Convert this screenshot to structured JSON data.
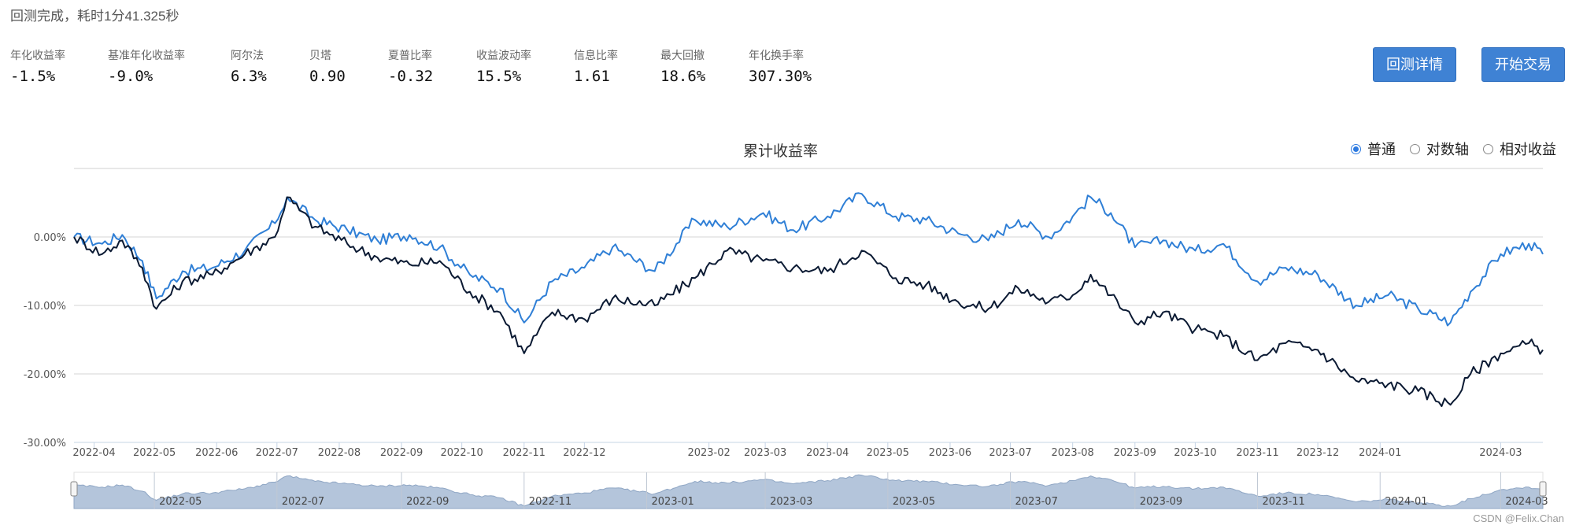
{
  "status_text": "回测完成，耗时1分41.325秒",
  "metrics": [
    {
      "label": "年化收益率",
      "value": "-1.5%"
    },
    {
      "label": "基准年化收益率",
      "value": "-9.0%"
    },
    {
      "label": "阿尔法",
      "value": "6.3%"
    },
    {
      "label": "贝塔",
      "value": "0.90"
    },
    {
      "label": "夏普比率",
      "value": "-0.32"
    },
    {
      "label": "收益波动率",
      "value": "15.5%"
    },
    {
      "label": "信息比率",
      "value": "1.61"
    },
    {
      "label": "最大回撤",
      "value": "18.6%"
    },
    {
      "label": "年化换手率",
      "value": "307.30%"
    }
  ],
  "buttons": {
    "details": "回测详情",
    "start": "开始交易"
  },
  "chart_options": {
    "selected": "普通",
    "options": [
      "普通",
      "对数轴",
      "相对收益"
    ]
  },
  "colors": {
    "strategy": "#2f7fd6",
    "benchmark": "#0b1a33",
    "navigator_fill": "#b4c5db",
    "button": "#3f82d4"
  },
  "watermark": "CSDN @Felix.Chan",
  "chart_data": {
    "type": "line",
    "title": "累计收益率",
    "ylim": [
      -30,
      10
    ],
    "y_ticks": [
      "0.00%",
      "-10.00%",
      "-20.00%",
      "-30.00%"
    ],
    "y_tick_values": [
      0,
      -10,
      -20,
      -30
    ],
    "x_ticks": [
      "2022-04",
      "2022-05",
      "2022-06",
      "2022-07",
      "2022-08",
      "2022-09",
      "2022-10",
      "2022-11",
      "2022-12",
      "2023-02",
      "2023-03",
      "2023-04",
      "2023-05",
      "2023-06",
      "2023-07",
      "2023-08",
      "2023-09",
      "2023-10",
      "2023-11",
      "2023-12",
      "2024-01",
      "2024-03"
    ],
    "x_tick_dates": [
      "2022-04-01",
      "2022-05-01",
      "2022-06-01",
      "2022-07-01",
      "2022-08-01",
      "2022-09-01",
      "2022-10-01",
      "2022-11-01",
      "2022-12-01",
      "2023-02-01",
      "2023-03-01",
      "2023-04-01",
      "2023-05-01",
      "2023-06-01",
      "2023-07-01",
      "2023-08-01",
      "2023-09-01",
      "2023-10-01",
      "2023-11-01",
      "2023-12-01",
      "2024-01-01",
      "2024-03-01"
    ],
    "navigator_ticks": [
      "2022-05",
      "2022-07",
      "2022-09",
      "2022-11",
      "2023-01",
      "2023-03",
      "2023-05",
      "2023-07",
      "2023-09",
      "2023-11",
      "2024-01",
      "2024-03"
    ],
    "navigator_tick_dates": [
      "2022-05-01",
      "2022-07-01",
      "2022-09-01",
      "2022-11-01",
      "2023-01-01",
      "2023-03-01",
      "2023-05-01",
      "2023-07-01",
      "2023-09-01",
      "2023-11-01",
      "2024-01-01",
      "2024-03-01"
    ],
    "x_range": [
      "2022-03-22",
      "2024-03-22"
    ],
    "grid": true,
    "series": [
      {
        "color": "#2f7fd6",
        "points": [
          [
            "2022-03-22",
            0.0
          ],
          [
            "2022-04-05",
            -1.0
          ],
          [
            "2022-04-15",
            0.3
          ],
          [
            "2022-04-25",
            -3.5
          ],
          [
            "2022-05-02",
            -9.0
          ],
          [
            "2022-05-15",
            -5.0
          ],
          [
            "2022-05-30",
            -4.5
          ],
          [
            "2022-06-15",
            -2.0
          ],
          [
            "2022-06-30",
            2.0
          ],
          [
            "2022-07-06",
            5.8
          ],
          [
            "2022-07-20",
            2.5
          ],
          [
            "2022-08-05",
            1.0
          ],
          [
            "2022-08-20",
            -0.5
          ],
          [
            "2022-09-05",
            0.3
          ],
          [
            "2022-09-20",
            -1.5
          ],
          [
            "2022-10-05",
            -5.5
          ],
          [
            "2022-10-20",
            -7.5
          ],
          [
            "2022-11-01",
            -12.5
          ],
          [
            "2022-11-15",
            -6.5
          ],
          [
            "2022-12-01",
            -4.5
          ],
          [
            "2022-12-15",
            -1.5
          ],
          [
            "2023-01-05",
            -5.0
          ],
          [
            "2023-01-25",
            2.5
          ],
          [
            "2023-02-10",
            1.5
          ],
          [
            "2023-02-28",
            3.5
          ],
          [
            "2023-03-15",
            1.0
          ],
          [
            "2023-04-01",
            3.0
          ],
          [
            "2023-04-18",
            6.3
          ],
          [
            "2023-05-05",
            3.0
          ],
          [
            "2023-05-20",
            2.5
          ],
          [
            "2023-06-05",
            0.5
          ],
          [
            "2023-06-20",
            -0.5
          ],
          [
            "2023-07-05",
            2.5
          ],
          [
            "2023-07-20",
            0.0
          ],
          [
            "2023-08-01",
            3.0
          ],
          [
            "2023-08-10",
            5.8
          ],
          [
            "2023-08-20",
            3.5
          ],
          [
            "2023-09-01",
            -1.5
          ],
          [
            "2023-09-15",
            -0.5
          ],
          [
            "2023-10-01",
            -2.0
          ],
          [
            "2023-10-15",
            -1.0
          ],
          [
            "2023-11-01",
            -6.5
          ],
          [
            "2023-11-15",
            -4.5
          ],
          [
            "2023-12-01",
            -5.5
          ],
          [
            "2023-12-20",
            -10.0
          ],
          [
            "2024-01-05",
            -8.5
          ],
          [
            "2024-01-20",
            -10.5
          ],
          [
            "2024-02-05",
            -12.5
          ],
          [
            "2024-02-15",
            -8.0
          ],
          [
            "2024-03-01",
            -2.5
          ],
          [
            "2024-03-15",
            -1.0
          ],
          [
            "2024-03-22",
            -2.5
          ]
        ]
      },
      {
        "color": "#0b1a33",
        "points": [
          [
            "2022-03-22",
            0.0
          ],
          [
            "2022-04-05",
            -2.5
          ],
          [
            "2022-04-15",
            -0.5
          ],
          [
            "2022-04-25",
            -4.5
          ],
          [
            "2022-05-02",
            -10.5
          ],
          [
            "2022-05-15",
            -6.5
          ],
          [
            "2022-05-30",
            -5.5
          ],
          [
            "2022-06-15",
            -2.5
          ],
          [
            "2022-06-30",
            0.0
          ],
          [
            "2022-07-06",
            5.8
          ],
          [
            "2022-07-20",
            1.5
          ],
          [
            "2022-08-05",
            -1.0
          ],
          [
            "2022-08-20",
            -3.0
          ],
          [
            "2022-09-05",
            -4.0
          ],
          [
            "2022-09-20",
            -3.5
          ],
          [
            "2022-10-05",
            -8.0
          ],
          [
            "2022-10-20",
            -11.0
          ],
          [
            "2022-11-01",
            -17.0
          ],
          [
            "2022-11-15",
            -11.0
          ],
          [
            "2022-12-01",
            -12.0
          ],
          [
            "2022-12-15",
            -9.0
          ],
          [
            "2023-01-05",
            -10.0
          ],
          [
            "2023-01-25",
            -6.0
          ],
          [
            "2023-02-10",
            -2.0
          ],
          [
            "2023-02-28",
            -3.5
          ],
          [
            "2023-03-15",
            -4.5
          ],
          [
            "2023-04-01",
            -5.0
          ],
          [
            "2023-04-18",
            -2.0
          ],
          [
            "2023-05-05",
            -6.0
          ],
          [
            "2023-05-20",
            -7.0
          ],
          [
            "2023-06-05",
            -9.5
          ],
          [
            "2023-06-20",
            -10.5
          ],
          [
            "2023-07-05",
            -7.5
          ],
          [
            "2023-07-20",
            -9.5
          ],
          [
            "2023-08-01",
            -8.5
          ],
          [
            "2023-08-10",
            -5.5
          ],
          [
            "2023-08-20",
            -8.5
          ],
          [
            "2023-09-01",
            -12.5
          ],
          [
            "2023-09-15",
            -11.0
          ],
          [
            "2023-10-01",
            -13.5
          ],
          [
            "2023-10-15",
            -14.5
          ],
          [
            "2023-11-01",
            -18.0
          ],
          [
            "2023-11-15",
            -15.5
          ],
          [
            "2023-12-01",
            -16.5
          ],
          [
            "2023-12-20",
            -21.0
          ],
          [
            "2024-01-05",
            -21.5
          ],
          [
            "2024-01-20",
            -22.5
          ],
          [
            "2024-02-05",
            -24.5
          ],
          [
            "2024-02-15",
            -20.0
          ],
          [
            "2024-03-01",
            -17.0
          ],
          [
            "2024-03-15",
            -15.5
          ],
          [
            "2024-03-22",
            -16.5
          ]
        ]
      }
    ]
  }
}
